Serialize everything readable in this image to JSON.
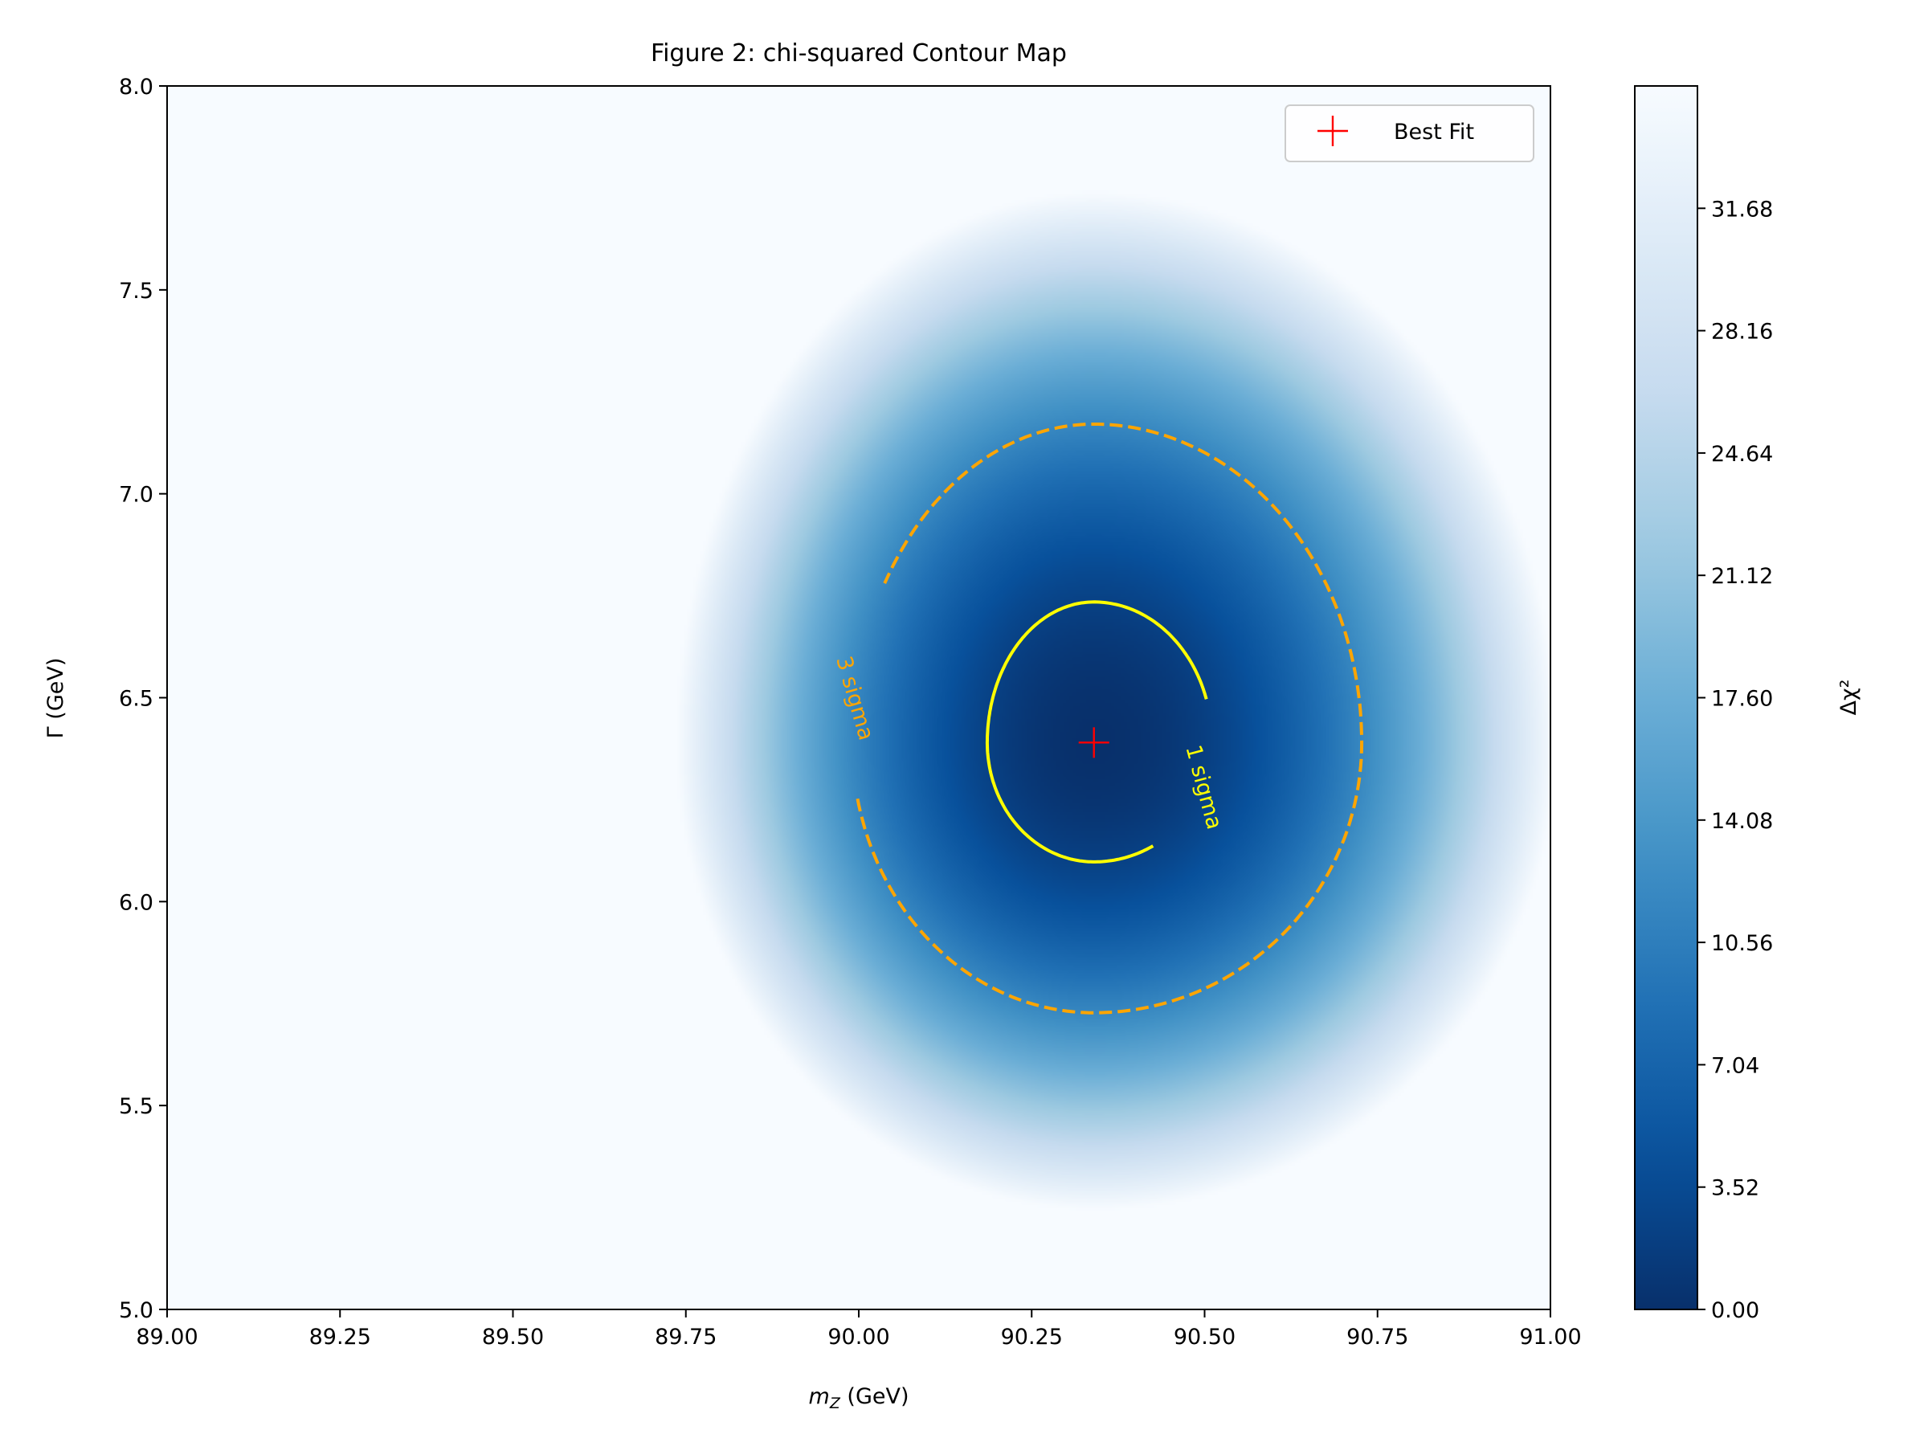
{
  "chart_data": {
    "type": "heatmap",
    "title": "Figure 2: chi-squared Contour Map",
    "xlabel": "m_Z (GeV)",
    "ylabel": "Γ (GeV)",
    "xlim": [
      89.0,
      91.0
    ],
    "ylim": [
      5.0,
      8.0
    ],
    "x_ticks": [
      "89.00",
      "89.25",
      "89.50",
      "89.75",
      "90.00",
      "90.25",
      "90.50",
      "90.75",
      "91.00"
    ],
    "y_ticks": [
      "5.0",
      "5.5",
      "6.0",
      "6.5",
      "7.0",
      "7.5",
      "8.0"
    ],
    "colorbar": {
      "label": "Δχ²",
      "colormap": "Blues_r",
      "range": [
        0.0,
        35.2
      ],
      "ticks": [
        "0.00",
        "3.52",
        "7.04",
        "10.56",
        "14.08",
        "17.60",
        "21.12",
        "24.64",
        "28.16",
        "31.68"
      ]
    },
    "chi2_surface": {
      "center_x": 90.34,
      "center_y": 6.39,
      "sigma_x_left": 0.1017,
      "sigma_x_right": 0.1127,
      "sigma_y_down": 0.1929,
      "sigma_y_up": 0.2273,
      "max_value": 35.2
    },
    "best_fit": {
      "x": 90.34,
      "y": 6.39,
      "label": "Best Fit",
      "color": "#ff0000"
    },
    "contours": [
      {
        "label": "1 sigma",
        "delta_chi2": 2.3,
        "color": "#ffff00",
        "style": "solid"
      },
      {
        "label": "3 sigma",
        "delta_chi2": 11.8,
        "color": "#ffa500",
        "style": "dashed"
      }
    ],
    "legend": {
      "entries": [
        "Best Fit"
      ],
      "position": "upper right"
    }
  }
}
